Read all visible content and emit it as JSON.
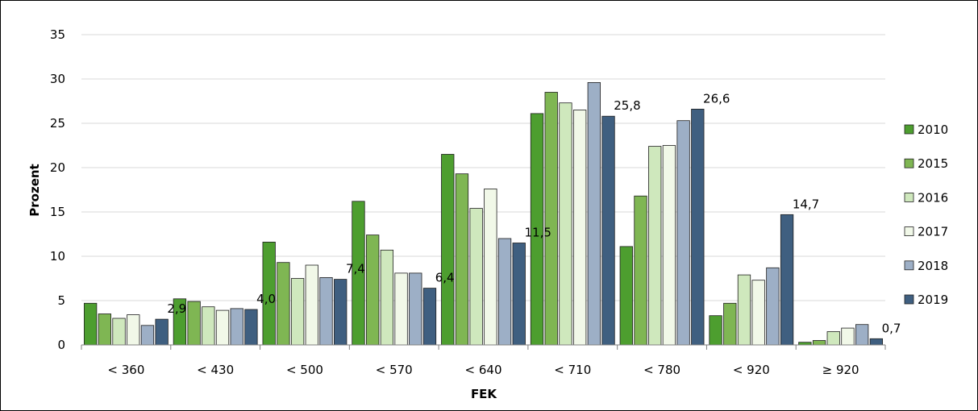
{
  "chart_data": {
    "type": "bar",
    "xlabel": "FEK",
    "ylabel": "Prozent",
    "ylim": [
      0,
      35
    ],
    "yticks": [
      0,
      5,
      10,
      15,
      20,
      25,
      30,
      35
    ],
    "grid": true,
    "legend_position": "right",
    "categories": [
      "< 360",
      "< 430",
      "< 500",
      "< 570",
      "< 640",
      "< 710",
      "< 780",
      "< 920",
      "≥ 920"
    ],
    "series": [
      {
        "name": "2010",
        "color": "#4d9e2f",
        "values": [
          4.7,
          5.2,
          11.6,
          16.2,
          21.5,
          26.1,
          11.1,
          3.3,
          0.3
        ]
      },
      {
        "name": "2015",
        "color": "#7fb653",
        "values": [
          3.5,
          4.9,
          9.3,
          12.4,
          19.3,
          28.5,
          16.8,
          4.7,
          0.5
        ]
      },
      {
        "name": "2016",
        "color": "#cfe8bd",
        "values": [
          3.0,
          4.3,
          7.5,
          10.7,
          15.4,
          27.3,
          22.4,
          7.9,
          1.5
        ]
      },
      {
        "name": "2017",
        "color": "#f1f8e8",
        "values": [
          3.4,
          3.9,
          9.0,
          8.1,
          17.6,
          26.5,
          22.5,
          7.3,
          1.9
        ]
      },
      {
        "name": "2018",
        "color": "#9dafc6",
        "values": [
          2.2,
          4.1,
          7.6,
          8.1,
          12.0,
          29.6,
          25.3,
          8.7,
          2.3
        ]
      },
      {
        "name": "2019",
        "color": "#3f5f80",
        "values": [
          2.9,
          4.0,
          7.4,
          6.4,
          11.5,
          25.8,
          26.6,
          14.7,
          0.7
        ]
      }
    ],
    "data_labels": {
      "series": "2019",
      "texts": [
        "2,9",
        "4,0",
        "7,4",
        "6,4",
        "11,5",
        "25,8",
        "26,6",
        "14,7",
        "0,7"
      ]
    }
  }
}
